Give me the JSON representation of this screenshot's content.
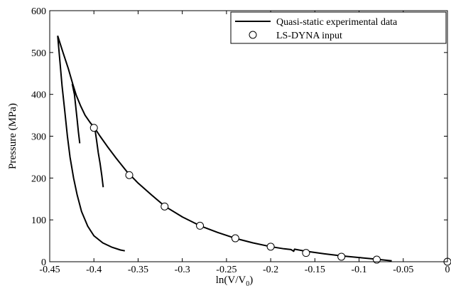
{
  "chart_data": {
    "type": "line",
    "xlabel": "ln(V/V",
    "xlabel_sub": "0",
    "xlabel_close": ")",
    "ylabel": "Pressure (MPa)",
    "xlim": [
      -0.45,
      0
    ],
    "ylim": [
      0,
      600
    ],
    "grid": false,
    "legend_position": "top-right",
    "x_ticks": [
      -0.45,
      -0.4,
      -0.35,
      -0.3,
      -0.25,
      -0.2,
      -0.15,
      -0.1,
      -0.05,
      0
    ],
    "x_tick_labels": [
      "-0.45",
      "-0.4",
      "-0.35",
      "-0.3",
      "-0.25",
      "-0.2",
      "-0.15",
      "-0.1",
      "-0.05",
      "0"
    ],
    "y_ticks": [
      0,
      100,
      200,
      300,
      400,
      500,
      600
    ],
    "y_tick_labels": [
      "0",
      "100",
      "200",
      "300",
      "400",
      "500",
      "600"
    ],
    "series": [
      {
        "name": "Quasi-static experimental data",
        "style": "line",
        "color": "#000000",
        "segments": [
          [
            [
              -0.441,
              540
            ],
            [
              -0.4385,
              480
            ],
            [
              -0.436,
              420
            ],
            [
              -0.433,
              360
            ],
            [
              -0.43,
              300
            ],
            [
              -0.427,
              250
            ],
            [
              -0.423,
              200
            ],
            [
              -0.419,
              160
            ],
            [
              -0.414,
              120
            ],
            [
              -0.407,
              85
            ],
            [
              -0.4,
              62
            ],
            [
              -0.39,
              45
            ],
            [
              -0.38,
              35
            ],
            [
              -0.37,
              28
            ],
            [
              -0.365,
              26
            ]
          ],
          [
            [
              -0.441,
              540
            ],
            [
              -0.435,
              500
            ],
            [
              -0.429,
              462
            ],
            [
              -0.424,
              425
            ],
            [
              -0.42,
              398
            ],
            [
              -0.415,
              372
            ],
            [
              -0.41,
              350
            ],
            [
              -0.404,
              332
            ],
            [
              -0.399,
              319
            ],
            [
              -0.393,
              300
            ],
            [
              -0.385,
              276
            ],
            [
              -0.375,
              248
            ],
            [
              -0.363,
              216
            ],
            [
              -0.35,
              188
            ],
            [
              -0.335,
              160
            ],
            [
              -0.32,
              133
            ],
            [
              -0.3,
              107
            ],
            [
              -0.28,
              86
            ],
            [
              -0.26,
              70
            ],
            [
              -0.24,
              56
            ],
            [
              -0.22,
              45
            ],
            [
              -0.2,
              36
            ],
            [
              -0.185,
              31
            ],
            [
              -0.177,
              29
            ],
            [
              -0.174,
              25
            ],
            [
              -0.173,
              30
            ],
            [
              -0.16,
              25
            ],
            [
              -0.14,
              19
            ],
            [
              -0.12,
              14
            ],
            [
              -0.1,
              10
            ],
            [
              -0.08,
              6
            ],
            [
              -0.063,
              2
            ]
          ],
          [
            [
              -0.4245,
              425
            ],
            [
              -0.422,
              400
            ],
            [
              -0.4205,
              370
            ],
            [
              -0.419,
              340
            ],
            [
              -0.4175,
              310
            ],
            [
              -0.416,
              283
            ]
          ],
          [
            [
              -0.399,
              319
            ],
            [
              -0.397,
              290
            ],
            [
              -0.395,
              260
            ],
            [
              -0.393,
              235
            ],
            [
              -0.391,
              205
            ],
            [
              -0.3895,
              178
            ]
          ]
        ]
      },
      {
        "name": "LS-DYNA input",
        "style": "markers",
        "marker": "circle",
        "points": [
          [
            -0.4,
            320
          ],
          [
            -0.36,
            207
          ],
          [
            -0.32,
            132
          ],
          [
            -0.28,
            86
          ],
          [
            -0.24,
            56
          ],
          [
            -0.2,
            36
          ],
          [
            -0.16,
            21
          ],
          [
            -0.12,
            12
          ],
          [
            -0.08,
            5
          ],
          [
            0,
            0
          ]
        ]
      }
    ]
  }
}
